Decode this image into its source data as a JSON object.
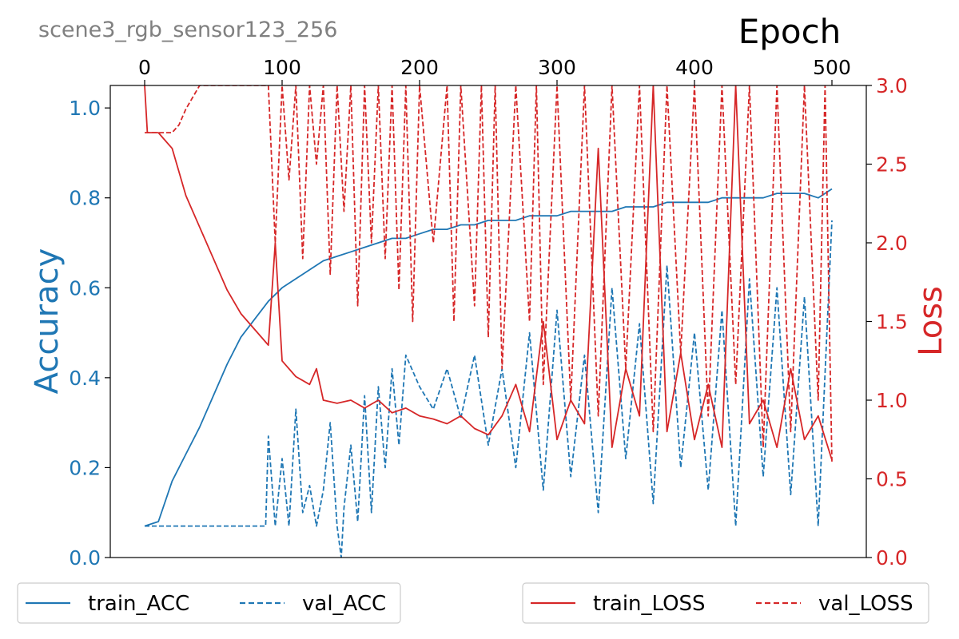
{
  "colors": {
    "acc": "#1f77b4",
    "loss": "#d62728",
    "title_gray": "#808080",
    "axis": "#000000"
  },
  "chart_data": {
    "type": "line",
    "title": "scene3_rgb_sensor123_256",
    "xlabel": "Epoch",
    "ylabel_left": "Accuracy",
    "ylabel_right": "Loss",
    "xlim": [
      -25,
      525
    ],
    "ylim_left": [
      0,
      1.05
    ],
    "ylim_right": [
      0,
      3.0
    ],
    "xticks": [
      "0",
      "100",
      "200",
      "300",
      "400",
      "500"
    ],
    "yticks_left": [
      "0.0",
      "0.2",
      "0.4",
      "0.6",
      "0.8",
      "1.0"
    ],
    "yticks_right": [
      "0.0",
      "0.5",
      "1.0",
      "1.5",
      "2.0",
      "2.5",
      "3.0"
    ],
    "legend_left": {
      "position": "bottom-left",
      "entries": [
        "train_ACC",
        "val_ACC"
      ]
    },
    "legend_right": {
      "position": "bottom-right",
      "entries": [
        "train_LOSS",
        "val_LOSS"
      ]
    },
    "series": [
      {
        "name": "train_ACC",
        "axis": "left",
        "style": "solid",
        "color": "#1f77b4",
        "x": [
          0,
          10,
          20,
          30,
          40,
          50,
          60,
          70,
          80,
          90,
          100,
          110,
          120,
          130,
          140,
          150,
          160,
          170,
          180,
          190,
          200,
          210,
          220,
          230,
          240,
          250,
          260,
          270,
          280,
          290,
          300,
          310,
          320,
          330,
          340,
          350,
          360,
          370,
          380,
          390,
          400,
          410,
          420,
          430,
          440,
          450,
          460,
          470,
          480,
          490,
          500
        ],
        "y": [
          0.07,
          0.08,
          0.17,
          0.23,
          0.29,
          0.36,
          0.43,
          0.49,
          0.53,
          0.57,
          0.6,
          0.62,
          0.64,
          0.66,
          0.67,
          0.68,
          0.69,
          0.7,
          0.71,
          0.71,
          0.72,
          0.73,
          0.73,
          0.74,
          0.74,
          0.75,
          0.75,
          0.75,
          0.76,
          0.76,
          0.76,
          0.77,
          0.77,
          0.77,
          0.77,
          0.78,
          0.78,
          0.78,
          0.79,
          0.79,
          0.79,
          0.79,
          0.8,
          0.8,
          0.8,
          0.8,
          0.81,
          0.81,
          0.81,
          0.8,
          0.82
        ]
      },
      {
        "name": "val_ACC",
        "axis": "left",
        "style": "dashed",
        "color": "#1f77b4",
        "x": [
          0,
          10,
          20,
          30,
          40,
          50,
          60,
          70,
          80,
          88,
          90,
          95,
          100,
          105,
          110,
          115,
          120,
          125,
          130,
          135,
          140,
          143,
          145,
          150,
          155,
          160,
          165,
          170,
          175,
          180,
          185,
          190,
          200,
          210,
          220,
          230,
          240,
          250,
          260,
          270,
          280,
          290,
          300,
          310,
          320,
          330,
          340,
          350,
          360,
          370,
          380,
          390,
          400,
          410,
          420,
          430,
          440,
          450,
          460,
          470,
          480,
          490,
          500
        ],
        "y": [
          0.07,
          0.07,
          0.07,
          0.07,
          0.07,
          0.07,
          0.07,
          0.07,
          0.07,
          0.07,
          0.27,
          0.07,
          0.22,
          0.07,
          0.33,
          0.1,
          0.16,
          0.07,
          0.15,
          0.3,
          0.07,
          0.0,
          0.11,
          0.25,
          0.08,
          0.36,
          0.1,
          0.38,
          0.2,
          0.42,
          0.25,
          0.45,
          0.38,
          0.33,
          0.42,
          0.31,
          0.45,
          0.25,
          0.42,
          0.2,
          0.5,
          0.15,
          0.55,
          0.18,
          0.45,
          0.1,
          0.6,
          0.22,
          0.52,
          0.12,
          0.65,
          0.2,
          0.5,
          0.15,
          0.55,
          0.07,
          0.62,
          0.18,
          0.6,
          0.14,
          0.58,
          0.07,
          0.75
        ]
      },
      {
        "name": "train_LOSS",
        "axis": "right",
        "style": "solid",
        "color": "#d62728",
        "x": [
          0,
          2,
          5,
          10,
          15,
          20,
          25,
          30,
          40,
          50,
          60,
          70,
          80,
          90,
          95,
          100,
          110,
          120,
          125,
          130,
          140,
          150,
          160,
          170,
          180,
          190,
          200,
          210,
          220,
          230,
          240,
          250,
          260,
          270,
          280,
          290,
          300,
          310,
          320,
          330,
          340,
          350,
          360,
          370,
          380,
          390,
          400,
          410,
          420,
          430,
          440,
          450,
          460,
          470,
          480,
          490,
          500
        ],
        "y": [
          3.0,
          2.7,
          2.7,
          2.7,
          2.65,
          2.6,
          2.45,
          2.3,
          2.1,
          1.9,
          1.7,
          1.55,
          1.45,
          1.35,
          2.0,
          1.25,
          1.15,
          1.1,
          1.2,
          1.0,
          0.98,
          1.0,
          0.95,
          1.0,
          0.92,
          0.95,
          0.9,
          0.88,
          0.85,
          0.9,
          0.82,
          0.78,
          0.9,
          1.1,
          0.8,
          1.5,
          0.75,
          1.0,
          0.85,
          2.6,
          0.7,
          1.2,
          0.9,
          3.0,
          0.8,
          1.3,
          0.75,
          1.1,
          0.7,
          3.0,
          0.85,
          1.0,
          0.7,
          1.2,
          0.75,
          0.9,
          0.62
        ]
      },
      {
        "name": "val_LOSS",
        "axis": "right",
        "style": "dashed",
        "color": "#d62728",
        "x": [
          0,
          10,
          20,
          25,
          30,
          40,
          42,
          90,
          95,
          100,
          105,
          110,
          115,
          120,
          125,
          130,
          135,
          140,
          145,
          150,
          155,
          160,
          165,
          170,
          175,
          180,
          185,
          190,
          195,
          200,
          210,
          220,
          225,
          230,
          240,
          245,
          250,
          255,
          260,
          270,
          280,
          285,
          290,
          300,
          310,
          320,
          330,
          340,
          350,
          360,
          370,
          380,
          390,
          400,
          410,
          420,
          430,
          440,
          450,
          460,
          470,
          480,
          490,
          495,
          500
        ],
        "y": [
          2.7,
          2.7,
          2.7,
          2.75,
          2.85,
          3.0,
          3.0,
          3.0,
          2.0,
          3.0,
          2.4,
          3.0,
          1.9,
          3.0,
          2.5,
          3.0,
          1.8,
          3.0,
          2.2,
          3.0,
          1.6,
          3.0,
          2.0,
          3.0,
          1.9,
          3.0,
          1.7,
          3.0,
          1.5,
          3.0,
          2.0,
          3.0,
          1.5,
          3.0,
          1.6,
          3.0,
          1.4,
          3.0,
          1.2,
          3.0,
          1.5,
          3.0,
          1.1,
          3.0,
          1.0,
          3.0,
          0.9,
          3.0,
          1.2,
          3.0,
          0.8,
          3.0,
          1.3,
          3.0,
          0.9,
          3.0,
          1.1,
          3.0,
          0.7,
          3.0,
          0.8,
          3.0,
          1.0,
          3.0,
          0.6
        ]
      }
    ]
  }
}
